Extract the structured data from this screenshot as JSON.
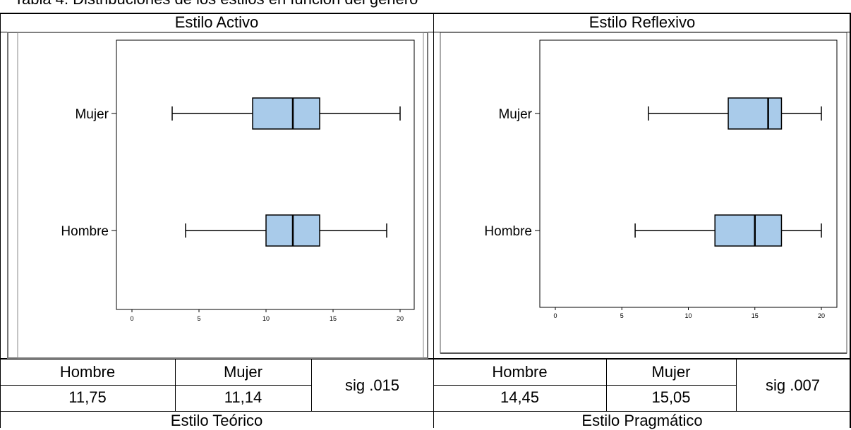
{
  "caption": "Tabla 4. Distribuciones de los estilos en función del género",
  "colors": {
    "box_fill": "#a9cbea",
    "line": "#000000"
  },
  "sections": {
    "activo": {
      "title": "Estilo Activo",
      "col_hombre": "Hombre",
      "col_mujer": "Mujer",
      "mean_hombre": "11,75",
      "mean_mujer": "11,14",
      "sig": "sig .015"
    },
    "reflexivo": {
      "title": "Estilo Reflexivo",
      "col_hombre": "Hombre",
      "col_mujer": "Mujer",
      "mean_hombre": "14,45",
      "mean_mujer": "15,05",
      "sig": "sig .007"
    },
    "teorico": {
      "title": "Estilo Teórico"
    },
    "pragmatico": {
      "title": "Estilo Pragmático"
    }
  },
  "chart_data": [
    {
      "type": "boxplot",
      "orientation": "horizontal",
      "categories": [
        "Mujer",
        "Hombre"
      ],
      "x_ticks": [
        "0",
        "5",
        "10",
        "15",
        "20"
      ],
      "xlim": [
        0,
        20
      ],
      "boxes": [
        {
          "category": "Mujer",
          "min": 3,
          "q1": 9,
          "median": 12,
          "q3": 14,
          "max": 20
        },
        {
          "category": "Hombre",
          "min": 4,
          "q1": 10,
          "median": 12,
          "q3": 14,
          "max": 19
        }
      ]
    },
    {
      "type": "boxplot",
      "orientation": "horizontal",
      "categories": [
        "Mujer",
        "Hombre"
      ],
      "x_ticks": [
        "0",
        "5",
        "10",
        "15",
        "20"
      ],
      "xlim": [
        0,
        20
      ],
      "boxes": [
        {
          "category": "Mujer",
          "min": 7,
          "q1": 13,
          "median": 16,
          "q3": 17,
          "max": 20
        },
        {
          "category": "Hombre",
          "min": 6,
          "q1": 12,
          "median": 15,
          "q3": 17,
          "max": 20
        }
      ]
    }
  ]
}
